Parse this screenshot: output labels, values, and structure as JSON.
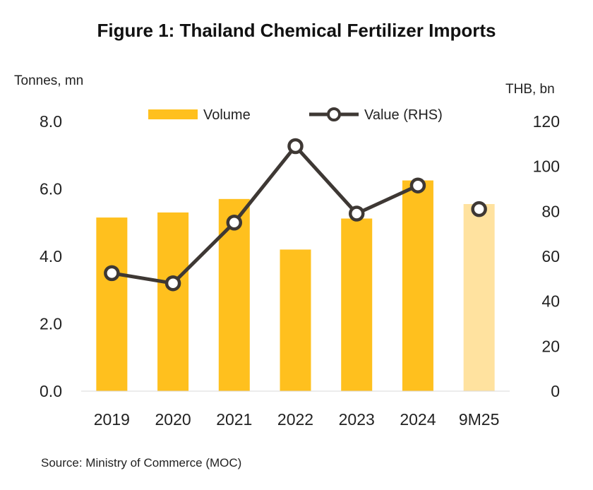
{
  "chart_data": {
    "type": "bar+line",
    "title": "Figure 1: Thailand Chemical Fertilizer Imports",
    "ylabel_left": "Tonnes, mn",
    "ylabel_right": "THB, bn",
    "categories": [
      "2019",
      "2020",
      "2021",
      "2022",
      "2023",
      "2024",
      "9M25"
    ],
    "series": [
      {
        "name": "Volume",
        "type": "bar",
        "axis": "left",
        "values": [
          5.15,
          5.3,
          5.7,
          4.2,
          5.12,
          6.25,
          5.55
        ],
        "color": "#FFC01E",
        "highlight_color": "#FFE29F",
        "highlight_categories": [
          "9M25"
        ]
      },
      {
        "name": "Value (RHS)",
        "type": "line",
        "axis": "right",
        "values": [
          52.5,
          48.0,
          75.0,
          109.0,
          79.0,
          91.5,
          81.0
        ],
        "color": "#3E3834"
      }
    ],
    "y_left": {
      "min": 0,
      "max": 8,
      "ticks": [
        "0.0",
        "2.0",
        "4.0",
        "6.0",
        "8.0"
      ]
    },
    "y_right": {
      "min": 0,
      "max": 120,
      "ticks": [
        "0",
        "20",
        "40",
        "60",
        "80",
        "100",
        "120"
      ]
    },
    "legend_position": "top",
    "grid": false
  },
  "source": "Source: Ministry of Commerce (MOC)"
}
